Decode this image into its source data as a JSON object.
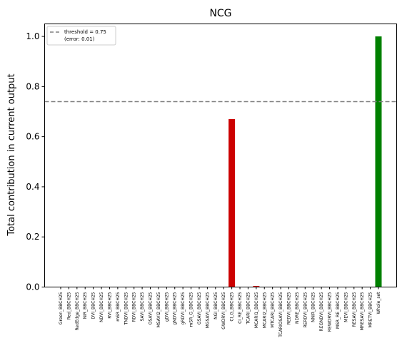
{
  "chart_data": {
    "type": "bar",
    "title": "NCG",
    "xlabel": "",
    "ylabel": "Total contribution in current output",
    "ylim": [
      0,
      1.05
    ],
    "yticks": [
      "0.0",
      "0.2",
      "0.4",
      "0.6",
      "0.8",
      "1.0"
    ],
    "categories": [
      "Green_BBCH25",
      "Red_BBCH25",
      "RedEdge_BBCH25",
      "NIR_BBCH25",
      "DVI_BBCH25",
      "NDVI_BBCH25",
      "RVI_BBCH25",
      "mSR_BBCH25",
      "TNDVI_BBCH25",
      "RDVI_BBCH25",
      "SAVI_BBCH25",
      "OSAVI_BBCH25",
      "MSAVI2_BBCH25",
      "gDVI_BBCH25",
      "gNDVI_BBCH25",
      "gRDVI_BBCH25",
      "mSR_G_BBCH25",
      "GSAVI_BBCH25",
      "MGSAVI_BBCH25",
      "NGI_BBCH25",
      "GWDRVI_BBCH25",
      "CI_G_BBCH25",
      "CI_RE_BBCH25",
      "TCARI_BBCH25",
      "MCARI1_BBCH25",
      "MCARI2_BBCH25",
      "MTCARI_BBCH25",
      "TCARIOSAVI_BBCH25",
      "REDVI_BBCH25",
      "NDRE_BBCH25",
      "RERDVI_BBCH25",
      "NNIR_BBCH25",
      "REGNDVI_BBCH25",
      "REWDRVI_BBCH25",
      "MSR_RE_BBCH25",
      "MEVI_BBCH25",
      "RESAVI_BBCH25",
      "MRESAVI_BBCH25",
      "MRETVI_BBCH25",
      "Whole_set"
    ],
    "values": [
      0,
      0,
      0,
      0,
      0,
      0,
      0,
      0,
      0,
      0,
      0,
      0,
      0,
      0,
      0,
      0,
      0,
      0,
      0,
      0,
      0,
      0.67,
      0,
      0,
      0.004,
      0,
      0,
      0,
      0,
      0,
      0,
      0,
      0,
      0,
      0,
      0,
      0,
      0,
      0,
      1.0
    ],
    "bar_colors": {
      "CI_G_BBCH25": "#cc0000",
      "MCARI1_BBCH25": "#cc0000",
      "Whole_set": "#008000"
    },
    "threshold": {
      "value": 0.74,
      "color": "#808080",
      "legend_line1": "threshold = 0.75",
      "legend_line2": "(error: 0.01)"
    },
    "legend_position": "top-left",
    "grid": false
  }
}
